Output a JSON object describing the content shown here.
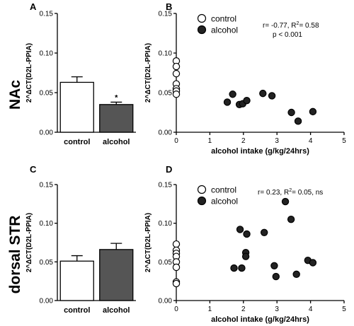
{
  "colors": {
    "alcohol": "#555555",
    "control": "#ffffff",
    "point_fill": "#222222",
    "stroke": "#000000"
  },
  "regions": [
    "NAc",
    "dorsal STR"
  ],
  "chart_data": [
    {
      "panel": "A",
      "type": "bar",
      "ylabel": "2^ΔCT(D2L-PPIA)",
      "ylim": [
        0,
        0.15
      ],
      "yticks": [
        "0.00",
        "0.05",
        "0.10",
        "0.15"
      ],
      "categories": [
        "control",
        "alcohol"
      ],
      "values": [
        0.063,
        0.035
      ],
      "errors": [
        0.007,
        0.003
      ],
      "annotations": [
        "",
        "*"
      ]
    },
    {
      "panel": "B",
      "type": "scatter",
      "ylabel": "2^ΔCT(D2L-PPIA)",
      "xlabel": "alcohol intake (g/kg/24hrs)",
      "xlim": [
        0,
        5
      ],
      "ylim": [
        0,
        0.15
      ],
      "xticks": [
        "0",
        "1",
        "2",
        "3",
        "4",
        "5"
      ],
      "yticks": [
        "0.00",
        "0.05",
        "0.10",
        "0.15"
      ],
      "legend": [
        "control",
        "alcohol"
      ],
      "stats": [
        "r= -0.77, R",
        "2",
        "= 0.58",
        "p < 0.001"
      ],
      "series": [
        {
          "name": "control",
          "points": [
            [
              0,
              0.09
            ],
            [
              0,
              0.083
            ],
            [
              0,
              0.074
            ],
            [
              0,
              0.061
            ],
            [
              0,
              0.055
            ],
            [
              0,
              0.052
            ],
            [
              0,
              0.048
            ]
          ]
        },
        {
          "name": "alcohol",
          "points": [
            [
              1.52,
              0.038
            ],
            [
              1.68,
              0.048
            ],
            [
              1.88,
              0.035
            ],
            [
              1.98,
              0.036
            ],
            [
              2.1,
              0.04
            ],
            [
              2.58,
              0.049
            ],
            [
              2.85,
              0.046
            ],
            [
              3.43,
              0.025
            ],
            [
              3.63,
              0.014
            ],
            [
              4.07,
              0.026
            ]
          ]
        }
      ]
    },
    {
      "panel": "C",
      "type": "bar",
      "ylabel": "2^ΔCT(D2L-PPIA)",
      "ylim": [
        0,
        0.15
      ],
      "yticks": [
        "0.00",
        "0.05",
        "0.10",
        "0.15"
      ],
      "categories": [
        "control",
        "alcohol"
      ],
      "values": [
        0.051,
        0.066
      ],
      "errors": [
        0.007,
        0.008
      ],
      "annotations": [
        "",
        ""
      ]
    },
    {
      "panel": "D",
      "type": "scatter",
      "ylabel": "2^ΔCT(D2L-PPIA)",
      "xlabel": "alcohol intake (g/kg/24hrs)",
      "xlim": [
        0,
        5
      ],
      "ylim": [
        0,
        0.15
      ],
      "xticks": [
        "0",
        "1",
        "2",
        "3",
        "4",
        "5"
      ],
      "yticks": [
        "0.00",
        "0.05",
        "0.10",
        "0.15"
      ],
      "legend": [
        "control",
        "alcohol"
      ],
      "stats": [
        "r= 0.23, R",
        "2",
        "= 0.05, ns"
      ],
      "series": [
        {
          "name": "control",
          "points": [
            [
              0,
              0.073
            ],
            [
              0,
              0.065
            ],
            [
              0,
              0.061
            ],
            [
              0,
              0.057
            ],
            [
              0,
              0.05
            ],
            [
              0,
              0.043
            ],
            [
              0,
              0.024
            ],
            [
              0,
              0.022
            ]
          ]
        },
        {
          "name": "alcohol",
          "points": [
            [
              1.72,
              0.042
            ],
            [
              1.9,
              0.092
            ],
            [
              1.95,
              0.042
            ],
            [
              2.07,
              0.062
            ],
            [
              2.1,
              0.086
            ],
            [
              2.07,
              0.057
            ],
            [
              2.62,
              0.088
            ],
            [
              2.92,
              0.045
            ],
            [
              2.97,
              0.031
            ],
            [
              3.25,
              0.128
            ],
            [
              3.42,
              0.105
            ],
            [
              3.58,
              0.034
            ],
            [
              3.92,
              0.052
            ],
            [
              4.07,
              0.049
            ]
          ]
        }
      ]
    }
  ]
}
